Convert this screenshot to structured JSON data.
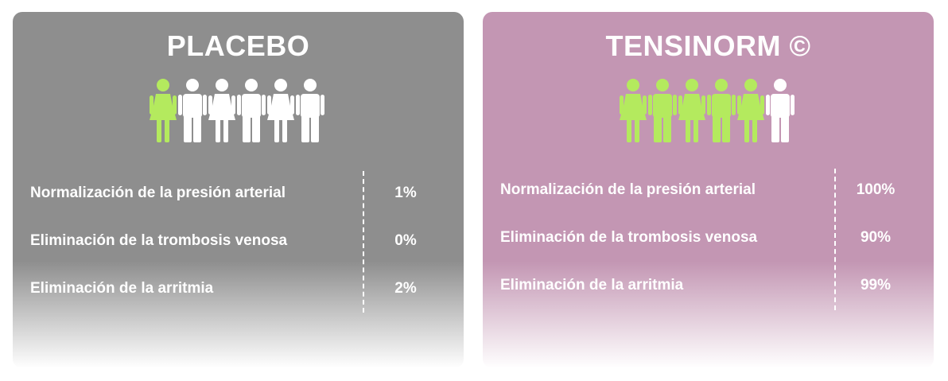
{
  "colors": {
    "placebo_bg": "#8e8e8e",
    "tensinorm_bg": "#c396b3",
    "highlight_green": "#b4ea5e",
    "text": "#ffffff"
  },
  "placebo": {
    "title": "PLACEBO",
    "figures_highlighted": 1,
    "figures_total": 6,
    "rows": [
      {
        "label": "Normalización de la presión arterial",
        "value": "1%"
      },
      {
        "label": "Eliminación de la trombosis venosa",
        "value": "0%"
      },
      {
        "label": "Eliminación de la arritmia",
        "value": "2%"
      }
    ]
  },
  "tensinorm": {
    "title": "TENSINORM ©",
    "figures_highlighted": 5,
    "figures_total": 6,
    "rows": [
      {
        "label": "Normalización de la presión arterial",
        "value": "100%"
      },
      {
        "label": "Eliminación de la trombosis venosa",
        "value": "90%"
      },
      {
        "label": "Eliminación de la arritmia",
        "value": "99%"
      }
    ]
  }
}
